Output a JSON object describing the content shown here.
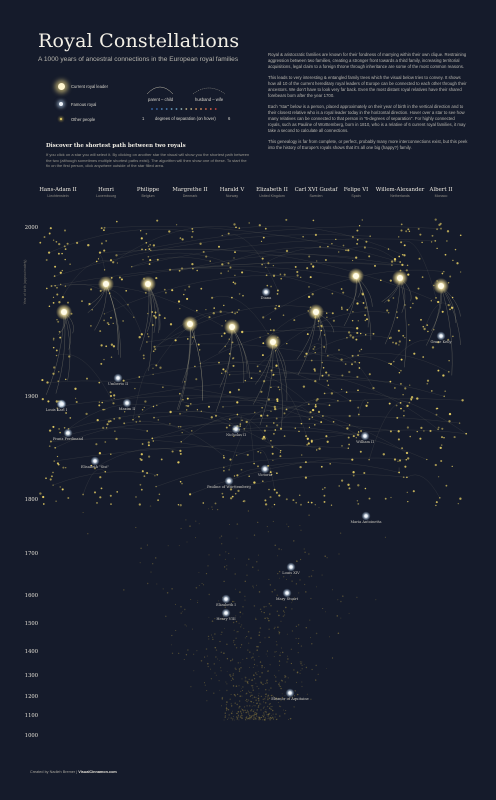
{
  "title": "Royal Constellations",
  "subtitle": "A 1000 years of ancestral connections in the European royal families",
  "intro": [
    "Royal & aristocratic families are known for their fondness of marrying within their own clique. Restraining aggression between two families, creating a stronger front towards a third family, increasing territorial acquisitions, legal claim to a foreign throne through inheritance are some of the most common reasons.",
    "This leads to very interesting & entangled family trees which the visual below tries to convey. It shows how all 10 of the current hereditary royal leaders of Europe can be connected to each other through their ancestors. We don't have to look very far back. Even the most distant royal relatives have their shared forebears born after the year 1700.",
    "Each \"star\" below is a person, placed approximately on their year of birth in the vertical direction and to their closest relative who is a royal leader today in the horizontal direction. Hover over a star to see how many relatives can be connected to that person in \"6-degrees of separation\". For highly connected royals, such as Pauline of Württemberg, born in 1810, who is a relative of 6 current royal families, it may take a second to calculate all connections.",
    "This genealogy is far from complete, or perfect, probably many more interconnections exist, but this peek into the history of Europe's royals shows that it's all one big (happy?) family."
  ],
  "legend": {
    "current": "Current royal leader",
    "famous": "Famous royal",
    "other": "Other people",
    "parent_child": "parent – child",
    "husband_wife": "husband – wife",
    "degrees": "degrees of separation (on hover)",
    "degree_start": "1",
    "degree_end": "6"
  },
  "discover": {
    "title": "Discover the shortest path between two royals",
    "body": "If you click on a star you will select it. By clicking on another star the visual will show you the shortest path between the two (although sometimes multiple shortest paths exist). The algorithm will then show one of these. To start the fix on the first person, click anywhere outside of the star filled area."
  },
  "royals": [
    {
      "name": "Hans-Adam II",
      "country": "Liechtenstein"
    },
    {
      "name": "Henri",
      "country": "Luxembourg"
    },
    {
      "name": "Philippe",
      "country": "Belgium"
    },
    {
      "name": "Margrethe II",
      "country": "Denmark"
    },
    {
      "name": "Harald V",
      "country": "Norway"
    },
    {
      "name": "Elizabeth II",
      "country": "United Kingdom"
    },
    {
      "name": "Carl XVI Gustaf",
      "country": "Sweden"
    },
    {
      "name": "Felipe VI",
      "country": "Spain"
    },
    {
      "name": "Willem-Alexander",
      "country": "Netherlands"
    },
    {
      "name": "Albert II",
      "country": "Monaco"
    }
  ],
  "axis": {
    "ylabel": "Year of birth (approximately)",
    "ticks": [
      "2000",
      "1900",
      "1800",
      "1700",
      "1600",
      "1500",
      "1400",
      "1300",
      "1200",
      "1100",
      "1000"
    ]
  },
  "labels": [
    {
      "text": "Louis I",
      "year": 1892
    },
    {
      "text": "Umberto II",
      "year": 1904
    },
    {
      "text": "Karl I",
      "year": 1887
    },
    {
      "text": "Maxim II",
      "year": 1888
    },
    {
      "text": "Franz Ferdinand",
      "year": 1863
    },
    {
      "text": "Elisabeth \"Sisi\"",
      "year": 1837
    },
    {
      "text": "Nicholas II",
      "year": 1868
    },
    {
      "text": "Pauline of Württemberg",
      "year": 1810
    },
    {
      "text": "Victoria",
      "year": 1819
    },
    {
      "text": "William II",
      "year": 1859
    },
    {
      "text": "Grace Kelly",
      "year": 1929
    },
    {
      "text": "Diana",
      "year": 1961
    },
    {
      "text": "Maria Antoinetta",
      "year": 1755
    },
    {
      "text": "Louis XIV",
      "year": 1638
    },
    {
      "text": "Mary Stuart",
      "year": 1542
    },
    {
      "text": "Elizabeth I",
      "year": 1533
    },
    {
      "text": "Henry VIII",
      "year": 1491
    },
    {
      "text": "Eleanor of Aquitaine",
      "year": 1122
    }
  ],
  "colors": {
    "background": "#151b2b",
    "current": "#fff3c4",
    "famous": "#e3edf7",
    "other": "#e8d36a",
    "link": "#c9c3a6"
  },
  "footer": {
    "text": "Created by Nadieh Bremer | ",
    "brand": "VisualCinnamon.com"
  },
  "chart_data": {
    "type": "scatter",
    "title": "Royal Constellations",
    "ylabel": "Year of birth (approximately)",
    "ylim": [
      1000,
      2000
    ],
    "x_categories": [
      "Hans-Adam II",
      "Henri",
      "Philippe",
      "Margrethe II",
      "Harald V",
      "Elizabeth II",
      "Carl XVI Gustaf",
      "Felipe VI",
      "Willem-Alexander",
      "Albert II"
    ],
    "current_royals": [
      {
        "name": "Hans-Adam II",
        "year": 1945
      },
      {
        "name": "Henri",
        "year": 1955
      },
      {
        "name": "Philippe",
        "year": 1960
      },
      {
        "name": "Margrethe II",
        "year": 1940
      },
      {
        "name": "Harald V",
        "year": 1937
      },
      {
        "name": "Elizabeth II",
        "year": 1926
      },
      {
        "name": "Carl XVI Gustaf",
        "year": 1946
      },
      {
        "name": "Felipe VI",
        "year": 1968
      },
      {
        "name": "Willem-Alexander",
        "year": 1967
      },
      {
        "name": "Albert II",
        "year": 1958
      }
    ],
    "famous_royals": [
      {
        "name": "Louis I",
        "year": 1892
      },
      {
        "name": "Umberto II",
        "year": 1904
      },
      {
        "name": "Karl I",
        "year": 1887
      },
      {
        "name": "Maxim II",
        "year": 1888
      },
      {
        "name": "Franz Ferdinand",
        "year": 1863
      },
      {
        "name": "Elisabeth \"Sisi\"",
        "year": 1837
      },
      {
        "name": "Nicholas II",
        "year": 1868
      },
      {
        "name": "Pauline of Württemberg",
        "year": 1810
      },
      {
        "name": "Victoria",
        "year": 1819
      },
      {
        "name": "William II",
        "year": 1859
      },
      {
        "name": "Grace Kelly",
        "year": 1929
      },
      {
        "name": "Diana",
        "year": 1961
      },
      {
        "name": "Maria Antoinetta",
        "year": 1755
      },
      {
        "name": "Louis XIV",
        "year": 1638
      },
      {
        "name": "Mary Stuart",
        "year": 1542
      },
      {
        "name": "Elizabeth I",
        "year": 1533
      },
      {
        "name": "Henry VIII",
        "year": 1491
      },
      {
        "name": "Eleanor of Aquitaine",
        "year": 1122
      }
    ],
    "legend_placement": "top-left",
    "grid": false
  }
}
